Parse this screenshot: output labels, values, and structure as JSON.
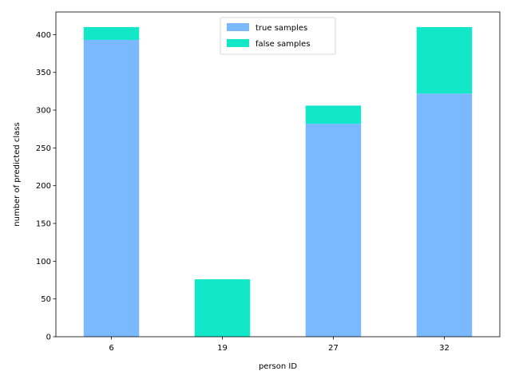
{
  "chart_data": {
    "type": "bar",
    "stacked": true,
    "categories": [
      "6",
      "19",
      "27",
      "32"
    ],
    "series": [
      {
        "name": "true samples",
        "values": [
          393,
          0,
          282,
          322
        ],
        "color": "#7ab8ff"
      },
      {
        "name": "false samples",
        "values": [
          17,
          76,
          24,
          88
        ],
        "color": "#12e8c8"
      }
    ],
    "xlabel": "person ID",
    "ylabel": "number of predicted class",
    "ylim": [
      0,
      430
    ],
    "yticks": [
      0,
      50,
      100,
      150,
      200,
      250,
      300,
      350,
      400
    ],
    "grid": false,
    "legend_position": "top-center"
  }
}
